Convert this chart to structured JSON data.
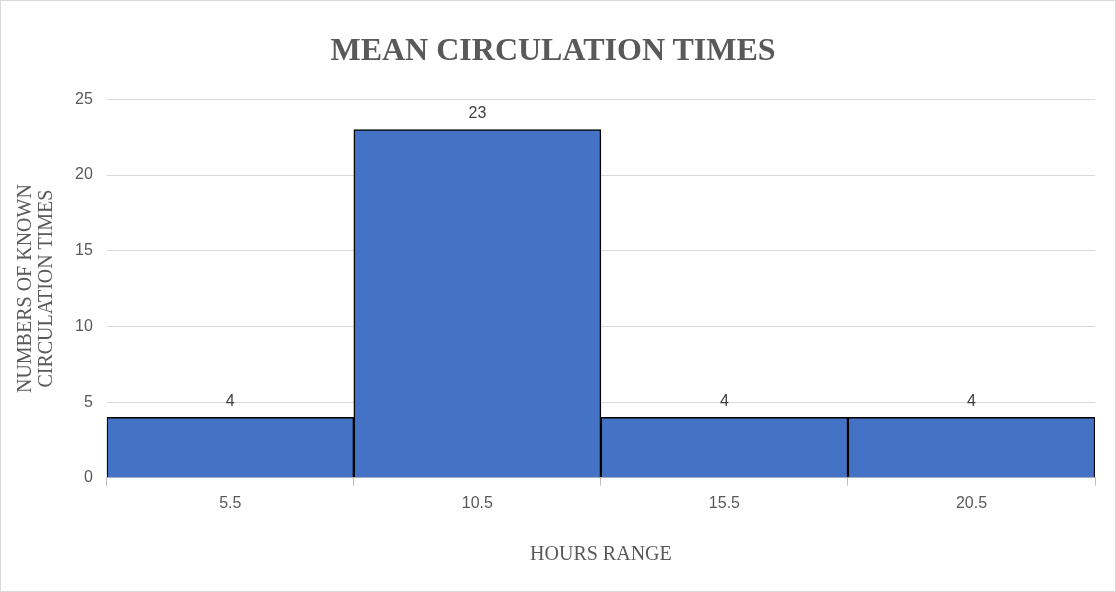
{
  "chart_data": {
    "type": "bar",
    "title": "MEAN CIRCULATION TIMES",
    "xlabel": "HOURS RANGE",
    "ylabel": "NUMBERS OF KNOWN CIRCULATION TIMES",
    "categories": [
      "5.5",
      "10.5",
      "15.5",
      "20.5"
    ],
    "values": [
      4,
      23,
      4,
      4
    ],
    "color": "#4472c4",
    "ylim": [
      0,
      25
    ],
    "yticks": [
      0,
      5,
      10,
      15,
      20,
      25
    ],
    "grid": "y",
    "data_labels": true,
    "legend": false
  }
}
